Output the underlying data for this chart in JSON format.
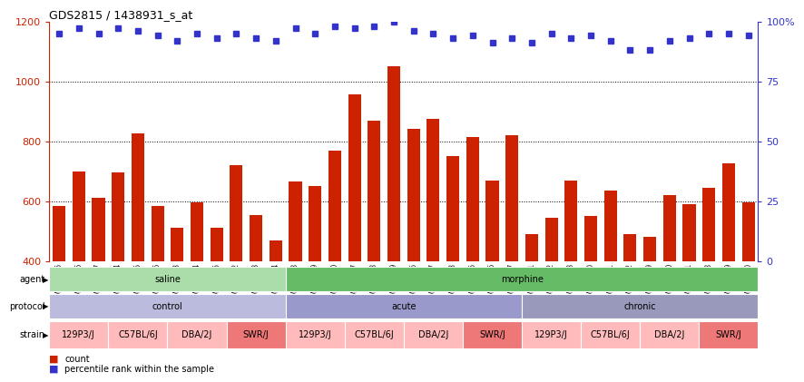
{
  "title": "GDS2815 / 1438931_s_at",
  "samples": [
    "GSM187965",
    "GSM187966",
    "GSM187967",
    "GSM187974",
    "GSM187975",
    "GSM187976",
    "GSM187983",
    "GSM187984",
    "GSM187985",
    "GSM187992",
    "GSM187993",
    "GSM187994",
    "GSM187968",
    "GSM187969",
    "GSM187970",
    "GSM187977",
    "GSM187978",
    "GSM187979",
    "GSM187986",
    "GSM187987",
    "GSM187988",
    "GSM187995",
    "GSM187996",
    "GSM187997",
    "GSM187971",
    "GSM187972",
    "GSM187973",
    "GSM187980",
    "GSM187981",
    "GSM187982",
    "GSM187989",
    "GSM187990",
    "GSM187991",
    "GSM187998",
    "GSM187999",
    "GSM188000"
  ],
  "bar_values": [
    585,
    700,
    610,
    695,
    825,
    585,
    510,
    595,
    510,
    720,
    555,
    470,
    665,
    650,
    770,
    955,
    870,
    1050,
    840,
    875,
    750,
    815,
    670,
    820,
    490,
    545,
    670,
    550,
    635,
    490,
    480,
    620,
    590,
    645,
    725,
    595
  ],
  "percentile_values": [
    95,
    97,
    95,
    97,
    96,
    94,
    92,
    95,
    93,
    95,
    93,
    92,
    97,
    95,
    98,
    97,
    98,
    100,
    96,
    95,
    93,
    94,
    91,
    93,
    91,
    95,
    93,
    94,
    92,
    88,
    88,
    92,
    93,
    95,
    95,
    94
  ],
  "bar_color": "#CC2200",
  "percentile_color": "#3333CC",
  "ylim_left": [
    400,
    1200
  ],
  "ylim_right": [
    0,
    100
  ],
  "yticks_left": [
    400,
    600,
    800,
    1000,
    1200
  ],
  "yticks_right": [
    0,
    25,
    50,
    75,
    100
  ],
  "grid_lines": [
    600,
    800,
    1000
  ],
  "agent_groups": [
    {
      "label": "saline",
      "start": 0,
      "end": 12,
      "color": "#AADDAA"
    },
    {
      "label": "morphine",
      "start": 12,
      "end": 36,
      "color": "#66BB66"
    }
  ],
  "protocol_groups": [
    {
      "label": "control",
      "start": 0,
      "end": 12,
      "color": "#BBBBDD"
    },
    {
      "label": "acute",
      "start": 12,
      "end": 24,
      "color": "#9999CC"
    },
    {
      "label": "chronic",
      "start": 24,
      "end": 36,
      "color": "#9999BB"
    }
  ],
  "strain_groups": [
    {
      "label": "129P3/J",
      "start": 0,
      "end": 3,
      "color": "#FFBBBB"
    },
    {
      "label": "C57BL/6J",
      "start": 3,
      "end": 6,
      "color": "#FFBBBB"
    },
    {
      "label": "DBA/2J",
      "start": 6,
      "end": 9,
      "color": "#FFBBBB"
    },
    {
      "label": "SWR/J",
      "start": 9,
      "end": 12,
      "color": "#EE7777"
    },
    {
      "label": "129P3/J",
      "start": 12,
      "end": 15,
      "color": "#FFBBBB"
    },
    {
      "label": "C57BL/6J",
      "start": 15,
      "end": 18,
      "color": "#FFBBBB"
    },
    {
      "label": "DBA/2J",
      "start": 18,
      "end": 21,
      "color": "#FFBBBB"
    },
    {
      "label": "SWR/J",
      "start": 21,
      "end": 24,
      "color": "#EE7777"
    },
    {
      "label": "129P3/J",
      "start": 24,
      "end": 27,
      "color": "#FFBBBB"
    },
    {
      "label": "C57BL/6J",
      "start": 27,
      "end": 30,
      "color": "#FFBBBB"
    },
    {
      "label": "DBA/2J",
      "start": 30,
      "end": 33,
      "color": "#FFBBBB"
    },
    {
      "label": "SWR/J",
      "start": 33,
      "end": 36,
      "color": "#EE7777"
    }
  ],
  "legend_count_color": "#CC2200",
  "legend_pct_color": "#3333CC",
  "plot_bg": "#FFFFFF",
  "fig_bg": "#FFFFFF"
}
